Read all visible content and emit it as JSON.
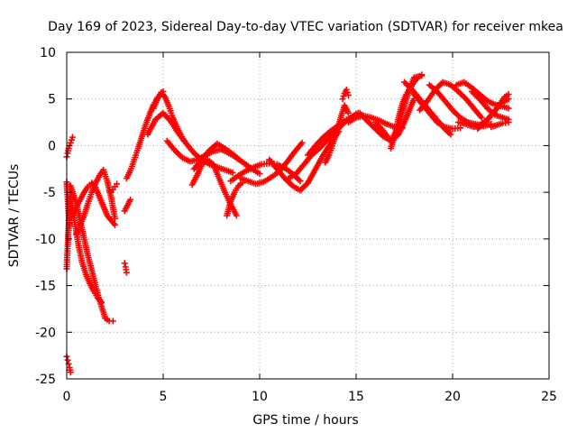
{
  "chart_data": {
    "type": "scatter",
    "title": "Day 169 of 2023, Sidereal Day-to-day VTEC variation (SDTVAR) for receiver mkea",
    "xlabel": "GPS time / hours",
    "ylabel": "SDTVAR / TECUs",
    "xlim": [
      0,
      25
    ],
    "ylim": [
      -25,
      10
    ],
    "x_ticks": [
      0,
      5,
      10,
      15,
      20,
      25
    ],
    "y_ticks": [
      -25,
      -20,
      -15,
      -10,
      -5,
      0,
      5,
      10
    ],
    "grid": true,
    "marker": "+",
    "series": [
      {
        "name": "SDTVAR",
        "color": "#ff0000",
        "tracks": [
          {
            "x": [
              0.0,
              0.05,
              0.1,
              0.15,
              0.2,
              0.25,
              0.3
            ],
            "y": [
              -1.2,
              -0.8,
              -0.3,
              0.0,
              0.3,
              0.6,
              0.9
            ]
          },
          {
            "x": [
              0.0,
              0.03,
              0.06,
              0.09,
              0.12,
              0.15
            ],
            "y": [
              -3.9,
              -5.0,
              -6.0,
              -7.0,
              -8.0,
              -8.6
            ]
          },
          {
            "x": [
              0.0,
              0.02,
              0.05,
              0.08,
              0.12,
              0.16,
              0.2
            ],
            "y": [
              -13.2,
              -12.0,
              -10.8,
              -9.5,
              -8.0,
              -6.5,
              -5.0
            ]
          },
          {
            "x": [
              0.0,
              0.05,
              0.1,
              0.15,
              0.2
            ],
            "y": [
              -22.6,
              -23.0,
              -23.4,
              -23.8,
              -24.3
            ]
          },
          {
            "x": [
              0.2,
              0.5,
              0.8,
              1.1,
              1.4,
              1.6,
              1.8,
              2.0,
              2.2,
              2.4
            ],
            "y": [
              -4.3,
              -6.2,
              -9.0,
              -11.8,
              -14.2,
              -15.8,
              -17.2,
              -18.5,
              -18.8,
              -18.8
            ]
          },
          {
            "x": [
              0.2,
              0.4,
              0.6,
              0.8,
              1.0,
              1.2,
              1.4,
              1.6,
              1.8
            ],
            "y": [
              -5.5,
              -8.0,
              -10.5,
              -12.5,
              -13.8,
              -14.8,
              -15.6,
              -16.3,
              -16.8
            ]
          },
          {
            "x": [
              0.1,
              0.3,
              0.5,
              0.7,
              0.9,
              1.1,
              1.3,
              1.5,
              1.7,
              1.9,
              2.1,
              2.3,
              2.5
            ],
            "y": [
              -8.0,
              -7.4,
              -6.6,
              -5.8,
              -5.0,
              -4.4,
              -4.0,
              -4.5,
              -5.5,
              -6.5,
              -7.5,
              -8.0,
              -8.5
            ]
          },
          {
            "x": [
              0.5,
              0.7,
              0.9,
              1.1,
              1.3,
              1.5,
              1.7,
              1.9,
              2.1,
              2.3,
              2.5
            ],
            "y": [
              -9.5,
              -8.5,
              -7.5,
              -6.2,
              -5.0,
              -4.0,
              -3.2,
              -2.6,
              -3.8,
              -5.5,
              -7.8
            ]
          },
          {
            "x": [
              2.3,
              2.4,
              2.5,
              2.6
            ],
            "y": [
              -5.0,
              -4.7,
              -4.4,
              -4.1
            ]
          },
          {
            "x": [
              3.0,
              3.05,
              3.1
            ],
            "y": [
              -12.6,
              -13.0,
              -13.6
            ]
          },
          {
            "x": [
              3.0,
              3.1,
              3.2,
              3.3
            ],
            "y": [
              -7.0,
              -6.6,
              -6.2,
              -5.8
            ]
          },
          {
            "x": [
              3.1,
              3.3,
              3.5,
              3.7,
              3.9,
              4.1,
              4.3,
              4.5,
              4.7,
              4.9,
              5.0
            ],
            "y": [
              -3.5,
              -2.7,
              -1.5,
              -0.3,
              1.0,
              2.3,
              3.4,
              4.4,
              5.1,
              5.6,
              5.8
            ]
          },
          {
            "x": [
              4.5,
              4.7,
              4.9,
              5.1,
              5.3,
              5.5,
              5.7,
              5.9,
              6.1
            ],
            "y": [
              4.0,
              5.0,
              5.7,
              5.2,
              4.2,
              3.0,
              2.0,
              1.2,
              0.5
            ]
          },
          {
            "x": [
              4.2,
              4.6,
              5.0,
              5.4,
              5.8,
              6.2,
              6.6,
              7.0,
              7.4,
              7.8,
              8.2,
              8.6
            ],
            "y": [
              1.2,
              2.8,
              3.5,
              2.6,
              1.3,
              0.2,
              -0.8,
              -1.5,
              -2.0,
              -2.3,
              -2.6,
              -2.9
            ]
          },
          {
            "x": [
              5.2,
              5.6,
              6.0,
              6.4,
              6.8,
              7.2,
              7.6,
              8.0,
              8.4,
              8.8,
              9.2,
              9.6,
              10.0
            ],
            "y": [
              0.5,
              -0.5,
              -1.3,
              -1.7,
              -1.5,
              -1.0,
              -0.6,
              -0.4,
              -0.8,
              -1.3,
              -1.9,
              -2.5,
              -3.0
            ]
          },
          {
            "x": [
              6.5,
              6.8,
              7.0,
              7.3,
              7.6,
              7.9,
              8.2,
              8.5,
              8.8
            ],
            "y": [
              -4.2,
              -3.0,
              -2.0,
              -1.5,
              -2.0,
              -3.5,
              -5.0,
              -6.3,
              -7.5
            ]
          },
          {
            "x": [
              6.6,
              7.0,
              7.4,
              7.8,
              8.2,
              8.6,
              9.0,
              9.4
            ],
            "y": [
              -2.5,
              -1.5,
              -0.5,
              0.2,
              -0.3,
              -0.9,
              -1.6,
              -2.2
            ]
          },
          {
            "x": [
              8.3,
              8.5,
              8.7,
              8.9,
              9.1
            ],
            "y": [
              -7.5,
              -6.0,
              -5.0,
              -4.3,
              -4.0
            ]
          },
          {
            "x": [
              8.5,
              8.9,
              9.3,
              9.7,
              10.1,
              10.5,
              10.9,
              11.3,
              11.7,
              12.1
            ],
            "y": [
              -3.8,
              -3.2,
              -2.7,
              -2.3,
              -2.0,
              -1.9,
              -2.0,
              -2.4,
              -3.0,
              -3.8
            ]
          },
          {
            "x": [
              9.0,
              9.4,
              9.8,
              10.2,
              10.6,
              11.0,
              11.4,
              11.8,
              12.2
            ],
            "y": [
              -3.5,
              -3.8,
              -4.1,
              -3.9,
              -3.4,
              -2.8,
              -1.8,
              -0.7,
              0.3
            ]
          },
          {
            "x": [
              10.5,
              10.9,
              11.3,
              11.7,
              12.1,
              12.5,
              12.9,
              13.3,
              13.7,
              14.1
            ],
            "y": [
              -1.5,
              -2.5,
              -3.5,
              -4.3,
              -4.8,
              -4.0,
              -2.5,
              -1.0,
              0.3,
              1.5
            ]
          },
          {
            "x": [
              11.5,
              11.9,
              12.3,
              12.7,
              13.1,
              13.5,
              13.9,
              14.3,
              14.7,
              15.1
            ],
            "y": [
              -3.5,
              -3.0,
              -2.0,
              -1.0,
              -0.3,
              0.6,
              1.4,
              2.3,
              3.0,
              3.5
            ]
          },
          {
            "x": [
              12.5,
              12.9,
              13.3,
              13.7,
              14.1,
              14.5
            ],
            "y": [
              -1.0,
              0.0,
              0.9,
              1.6,
              2.2,
              2.8
            ]
          },
          {
            "x": [
              13.4,
              13.6,
              13.8,
              14.0,
              14.2,
              14.4,
              14.6
            ],
            "y": [
              -1.8,
              -1.0,
              0.2,
              1.5,
              3.0,
              4.3,
              3.5
            ]
          },
          {
            "x": [
              14.3,
              14.4,
              14.5,
              14.6
            ],
            "y": [
              5.0,
              5.6,
              6.0,
              5.4
            ]
          },
          {
            "x": [
              14.6,
              15.0,
              15.4,
              15.8,
              16.2,
              16.6,
              17.0,
              17.4
            ],
            "y": [
              2.5,
              3.0,
              3.2,
              3.0,
              2.7,
              2.3,
              2.0,
              1.9
            ]
          },
          {
            "x": [
              15.2,
              15.6,
              16.0,
              16.4,
              16.8,
              17.2,
              17.6,
              18.0
            ],
            "y": [
              3.5,
              2.6,
              1.8,
              1.0,
              0.5,
              1.2,
              3.0,
              5.0
            ]
          },
          {
            "x": [
              16.0,
              16.4,
              16.8,
              17.2,
              17.6,
              18.0,
              18.4
            ],
            "y": [
              2.5,
              1.6,
              0.5,
              2.0,
              5.0,
              7.3,
              7.5
            ]
          },
          {
            "x": [
              16.8,
              17.0,
              17.2,
              17.4,
              17.6,
              17.8,
              18.0,
              18.2,
              18.4
            ],
            "y": [
              -0.3,
              1.0,
              3.0,
              4.5,
              5.5,
              6.2,
              6.8,
              7.3,
              7.6
            ]
          },
          {
            "x": [
              17.5,
              17.9,
              18.3,
              18.7,
              19.1,
              19.5,
              19.9
            ],
            "y": [
              6.8,
              6.0,
              5.0,
              4.0,
              3.0,
              2.0,
              1.2
            ]
          },
          {
            "x": [
              18.0,
              18.4,
              18.8,
              19.2,
              19.6,
              20.0,
              20.4
            ],
            "y": [
              5.5,
              4.5,
              3.5,
              2.5,
              2.0,
              1.8,
              1.9
            ]
          },
          {
            "x": [
              18.3,
              18.7,
              19.1,
              19.5,
              19.9,
              20.3,
              20.7,
              21.1,
              21.5
            ],
            "y": [
              3.8,
              4.8,
              6.0,
              6.8,
              6.5,
              5.8,
              5.0,
              4.0,
              3.0
            ]
          },
          {
            "x": [
              18.8,
              19.2,
              19.6,
              20.0,
              20.4,
              20.8,
              21.2,
              21.6,
              22.0
            ],
            "y": [
              6.5,
              5.8,
              4.8,
              3.8,
              3.0,
              2.5,
              2.3,
              2.1,
              2.3
            ]
          },
          {
            "x": [
              20.2,
              20.6,
              21.0,
              21.4,
              21.8,
              22.2,
              22.6,
              22.9
            ],
            "y": [
              6.5,
              6.8,
              6.2,
              5.5,
              4.8,
              4.4,
              4.2,
              4.0
            ]
          },
          {
            "x": [
              20.3,
              20.7,
              21.1,
              21.5,
              21.9,
              22.3,
              22.7,
              22.9
            ],
            "y": [
              2.5,
              2.3,
              2.0,
              2.3,
              3.0,
              4.0,
              5.2,
              5.5
            ]
          },
          {
            "x": [
              21.0,
              21.4,
              21.8,
              22.2,
              22.6,
              22.9
            ],
            "y": [
              5.8,
              5.0,
              4.0,
              3.3,
              3.0,
              2.8
            ]
          },
          {
            "x": [
              21.3,
              21.7,
              22.1,
              22.5,
              22.9
            ],
            "y": [
              1.8,
              2.5,
              3.5,
              4.5,
              5.0
            ]
          },
          {
            "x": [
              22.0,
              22.3,
              22.6,
              22.9
            ],
            "y": [
              2.0,
              2.2,
              2.4,
              2.5
            ]
          }
        ]
      }
    ]
  }
}
